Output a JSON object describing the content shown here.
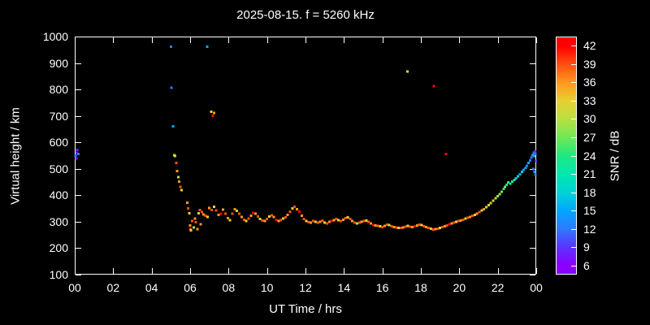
{
  "title": "2025-08-15. f = 5260 kHz",
  "chart_data": {
    "type": "scatter",
    "title": "2025-08-15. f = 5260 kHz",
    "xlabel": "UT Time / hrs",
    "ylabel": "Virtual height / km",
    "colorbar_label": "SNR / dB",
    "background": "#000000",
    "axis_color": "#ffffff",
    "grid": false,
    "legend": false,
    "point_style": "filled-square",
    "xlim": [
      0,
      24
    ],
    "ylim": [
      100,
      1000
    ],
    "cblim": [
      4.5,
      43.5
    ],
    "x_ticks": [
      {
        "t": 0,
        "label": "00"
      },
      {
        "t": 2,
        "label": "02"
      },
      {
        "t": 4,
        "label": "04"
      },
      {
        "t": 6,
        "label": "06"
      },
      {
        "t": 8,
        "label": "08"
      },
      {
        "t": 10,
        "label": "10"
      },
      {
        "t": 12,
        "label": "12"
      },
      {
        "t": 14,
        "label": "14"
      },
      {
        "t": 16,
        "label": "16"
      },
      {
        "t": 18,
        "label": "18"
      },
      {
        "t": 20,
        "label": "20"
      },
      {
        "t": 22,
        "label": "22"
      },
      {
        "t": 24,
        "label": "00"
      }
    ],
    "y_ticks": [
      100,
      200,
      300,
      400,
      500,
      600,
      700,
      800,
      900,
      1000
    ],
    "cb_ticks": [
      6,
      9,
      12,
      15,
      18,
      21,
      24,
      27,
      30,
      33,
      36,
      39,
      42
    ],
    "color_stops": [
      [
        6,
        "#8a00ff"
      ],
      [
        9,
        "#5a35ff"
      ],
      [
        12,
        "#2e7bff"
      ],
      [
        15,
        "#00a8ff"
      ],
      [
        18,
        "#00d4d4"
      ],
      [
        21,
        "#00e8b0"
      ],
      [
        24,
        "#20e880"
      ],
      [
        27,
        "#70e858"
      ],
      [
        30,
        "#b8e040"
      ],
      [
        33,
        "#e8d030"
      ],
      [
        36,
        "#ff9820"
      ],
      [
        39,
        "#ff5010"
      ],
      [
        42,
        "#ff0000"
      ]
    ],
    "points_format": [
      "ut_hours",
      "virtual_height_km",
      "snr_db"
    ],
    "points": [
      [
        0.05,
        550,
        12
      ],
      [
        0.08,
        540,
        9
      ],
      [
        0.1,
        560,
        6
      ],
      [
        0.12,
        572,
        9
      ],
      [
        0.18,
        556,
        12
      ],
      [
        5.0,
        962,
        12
      ],
      [
        5.02,
        806,
        12
      ],
      [
        5.12,
        660,
        15
      ],
      [
        5.18,
        552,
        33
      ],
      [
        5.22,
        548,
        30
      ],
      [
        5.28,
        522,
        39
      ],
      [
        5.33,
        492,
        36
      ],
      [
        5.38,
        468,
        30
      ],
      [
        5.44,
        452,
        36
      ],
      [
        5.5,
        432,
        39
      ],
      [
        5.55,
        420,
        33
      ],
      [
        5.85,
        372,
        36
      ],
      [
        5.9,
        350,
        39
      ],
      [
        5.95,
        332,
        33
      ],
      [
        6.0,
        286,
        36
      ],
      [
        6.02,
        272,
        39
      ],
      [
        6.05,
        268,
        33
      ],
      [
        6.1,
        302,
        39
      ],
      [
        6.18,
        278,
        30
      ],
      [
        6.25,
        312,
        36
      ],
      [
        6.3,
        298,
        39
      ],
      [
        6.38,
        272,
        36
      ],
      [
        6.45,
        332,
        33
      ],
      [
        6.5,
        344,
        39
      ],
      [
        6.55,
        290,
        36
      ],
      [
        6.62,
        336,
        39
      ],
      [
        6.7,
        328,
        36
      ],
      [
        6.8,
        322,
        39
      ],
      [
        6.88,
        962,
        15
      ],
      [
        6.9,
        318,
        33
      ],
      [
        7.0,
        352,
        36
      ],
      [
        7.1,
        716,
        33
      ],
      [
        7.12,
        344,
        39
      ],
      [
        7.18,
        700,
        42
      ],
      [
        7.24,
        356,
        33
      ],
      [
        7.25,
        712,
        36
      ],
      [
        7.36,
        342,
        39
      ],
      [
        7.48,
        326,
        36
      ],
      [
        7.6,
        331,
        42
      ],
      [
        7.72,
        345,
        36
      ],
      [
        7.84,
        331,
        39
      ],
      [
        7.96,
        313,
        36
      ],
      [
        8.08,
        306,
        33
      ],
      [
        8.2,
        331,
        39
      ],
      [
        8.32,
        347,
        36
      ],
      [
        8.44,
        341,
        30
      ],
      [
        8.56,
        331,
        39
      ],
      [
        8.68,
        318,
        36
      ],
      [
        8.8,
        308,
        39
      ],
      [
        8.92,
        302,
        33
      ],
      [
        9.04,
        312,
        39
      ],
      [
        9.16,
        322,
        36
      ],
      [
        9.28,
        333,
        42
      ],
      [
        9.4,
        330,
        36
      ],
      [
        9.52,
        320,
        39
      ],
      [
        9.64,
        310,
        33
      ],
      [
        9.76,
        304,
        39
      ],
      [
        9.88,
        302,
        36
      ],
      [
        10.0,
        310,
        39
      ],
      [
        10.12,
        320,
        33
      ],
      [
        10.24,
        324,
        39
      ],
      [
        10.36,
        318,
        36
      ],
      [
        10.48,
        308,
        42
      ],
      [
        10.6,
        303,
        36
      ],
      [
        10.72,
        306,
        39
      ],
      [
        10.84,
        312,
        33
      ],
      [
        10.96,
        316,
        39
      ],
      [
        11.08,
        326,
        36
      ],
      [
        11.2,
        338,
        39
      ],
      [
        11.32,
        350,
        33
      ],
      [
        11.44,
        356,
        39
      ],
      [
        11.56,
        348,
        36
      ],
      [
        11.68,
        338,
        42
      ],
      [
        11.8,
        322,
        36
      ],
      [
        11.92,
        310,
        39
      ],
      [
        12.04,
        303,
        33
      ],
      [
        12.16,
        298,
        39
      ],
      [
        12.28,
        296,
        36
      ],
      [
        12.4,
        303,
        39
      ],
      [
        12.52,
        300,
        30
      ],
      [
        12.64,
        296,
        39
      ],
      [
        12.76,
        300,
        36
      ],
      [
        12.88,
        304,
        39
      ],
      [
        13.0,
        296,
        33
      ],
      [
        13.12,
        293,
        39
      ],
      [
        13.24,
        299,
        36
      ],
      [
        13.36,
        303,
        42
      ],
      [
        13.48,
        306,
        36
      ],
      [
        13.6,
        310,
        39
      ],
      [
        13.72,
        306,
        33
      ],
      [
        13.84,
        303,
        39
      ],
      [
        13.96,
        308,
        36
      ],
      [
        14.08,
        314,
        39
      ],
      [
        14.2,
        316,
        33
      ],
      [
        14.32,
        310,
        39
      ],
      [
        14.44,
        302,
        36
      ],
      [
        14.56,
        297,
        39
      ],
      [
        14.68,
        294,
        30
      ],
      [
        14.8,
        296,
        39
      ],
      [
        14.92,
        299,
        36
      ],
      [
        15.04,
        303,
        39
      ],
      [
        15.16,
        305,
        33
      ],
      [
        15.28,
        300,
        39
      ],
      [
        15.4,
        293,
        36
      ],
      [
        15.52,
        288,
        42
      ],
      [
        15.64,
        286,
        36
      ],
      [
        15.76,
        284,
        39
      ],
      [
        15.88,
        282,
        33
      ],
      [
        16.0,
        280,
        39
      ],
      [
        16.12,
        284,
        36
      ],
      [
        16.24,
        289,
        39
      ],
      [
        16.36,
        287,
        30
      ],
      [
        16.48,
        283,
        39
      ],
      [
        16.6,
        280,
        36
      ],
      [
        16.72,
        278,
        39
      ],
      [
        16.84,
        277,
        33
      ],
      [
        16.96,
        276,
        39
      ],
      [
        17.08,
        278,
        36
      ],
      [
        17.2,
        281,
        39
      ],
      [
        17.3,
        868,
        33
      ],
      [
        17.32,
        284,
        33
      ],
      [
        17.44,
        281,
        39
      ],
      [
        17.56,
        279,
        36
      ],
      [
        17.68,
        283,
        42
      ],
      [
        17.8,
        286,
        36
      ],
      [
        17.92,
        289,
        39
      ],
      [
        18.04,
        287,
        33
      ],
      [
        18.16,
        283,
        39
      ],
      [
        18.28,
        279,
        36
      ],
      [
        18.4,
        276,
        39
      ],
      [
        18.52,
        273,
        30
      ],
      [
        18.64,
        271,
        39
      ],
      [
        18.68,
        812,
        42
      ],
      [
        18.76,
        272,
        36
      ],
      [
        18.88,
        274,
        39
      ],
      [
        19.0,
        276,
        33
      ],
      [
        19.12,
        279,
        39
      ],
      [
        19.24,
        282,
        36
      ],
      [
        19.32,
        556,
        42
      ],
      [
        19.36,
        286,
        39
      ],
      [
        19.48,
        290,
        42
      ],
      [
        19.6,
        293,
        36
      ],
      [
        19.72,
        296,
        39
      ],
      [
        19.84,
        299,
        33
      ],
      [
        19.96,
        302,
        39
      ],
      [
        20.08,
        305,
        36
      ],
      [
        20.2,
        308,
        39
      ],
      [
        20.32,
        312,
        30
      ],
      [
        20.44,
        315,
        39
      ],
      [
        20.56,
        318,
        36
      ],
      [
        20.68,
        322,
        39
      ],
      [
        20.8,
        326,
        33
      ],
      [
        20.92,
        331,
        36
      ],
      [
        21.04,
        336,
        39
      ],
      [
        21.16,
        342,
        33
      ],
      [
        21.28,
        348,
        36
      ],
      [
        21.4,
        355,
        30
      ],
      [
        21.52,
        362,
        33
      ],
      [
        21.64,
        370,
        30
      ],
      [
        21.76,
        379,
        33
      ],
      [
        21.88,
        388,
        30
      ],
      [
        22.0,
        396,
        27
      ],
      [
        22.1,
        404,
        30
      ],
      [
        22.2,
        414,
        27
      ],
      [
        22.3,
        424,
        24
      ],
      [
        22.38,
        432,
        27
      ],
      [
        22.45,
        440,
        24
      ],
      [
        22.55,
        448,
        24
      ],
      [
        22.65,
        444,
        21
      ],
      [
        22.75,
        452,
        24
      ],
      [
        22.85,
        458,
        21
      ],
      [
        22.95,
        464,
        18
      ],
      [
        23.05,
        472,
        18
      ],
      [
        23.15,
        480,
        15
      ],
      [
        23.25,
        488,
        18
      ],
      [
        23.35,
        496,
        15
      ],
      [
        23.45,
        504,
        15
      ],
      [
        23.52,
        512,
        12
      ],
      [
        23.6,
        522,
        15
      ],
      [
        23.68,
        532,
        12
      ],
      [
        23.75,
        542,
        12
      ],
      [
        23.82,
        552,
        15
      ],
      [
        23.85,
        500,
        12
      ],
      [
        23.88,
        560,
        12
      ],
      [
        23.9,
        548,
        15
      ],
      [
        23.92,
        488,
        15
      ],
      [
        23.93,
        566,
        9
      ],
      [
        23.95,
        478,
        12
      ],
      [
        23.96,
        556,
        12
      ],
      [
        23.97,
        530,
        9
      ]
    ]
  }
}
